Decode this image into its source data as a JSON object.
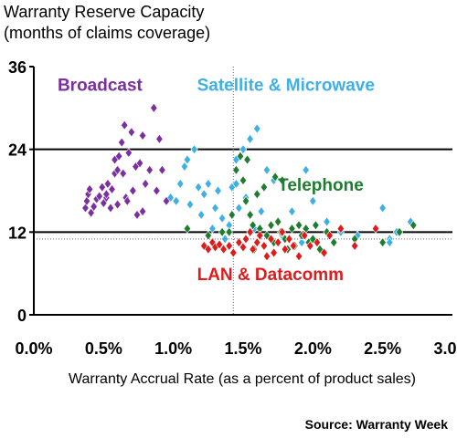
{
  "chart_data": {
    "type": "scatter",
    "title_lines": [
      "Warranty Reserve Capacity",
      "(months of claims coverage)"
    ],
    "xlabel": "Warranty Accrual Rate (as a percent of product sales)",
    "source": "Source: Warranty Week",
    "xlim": [
      0,
      3.0
    ],
    "ylim": [
      0,
      36
    ],
    "x_ticks": [
      0,
      0.5,
      1.0,
      1.5,
      2.0,
      2.5,
      3.0
    ],
    "x_tick_labels": [
      "0.0%",
      "0.5%",
      "1.0%",
      "1.5%",
      "2.0%",
      "2.5%",
      "3.0%"
    ],
    "y_ticks": [
      0,
      12,
      24,
      36
    ],
    "y_tick_labels": [
      "0",
      "12",
      "24",
      "36"
    ],
    "major_gridlines_y": [
      12,
      24
    ],
    "reference_lines": {
      "x": 1.43,
      "y": 11.0
    },
    "marker": "diamond",
    "series": [
      {
        "name": "Broadcast",
        "color": "#7b2fa0",
        "label_pos": [
          0.17,
          32.5
        ],
        "points": [
          [
            0.37,
            15.5
          ],
          [
            0.38,
            16.5
          ],
          [
            0.39,
            17.5
          ],
          [
            0.4,
            18.2
          ],
          [
            0.41,
            14.8
          ],
          [
            0.43,
            15.7
          ],
          [
            0.45,
            16.8
          ],
          [
            0.47,
            17.2
          ],
          [
            0.49,
            18.5
          ],
          [
            0.5,
            16.2
          ],
          [
            0.52,
            17.0
          ],
          [
            0.53,
            19.0
          ],
          [
            0.55,
            15.5
          ],
          [
            0.56,
            18.2
          ],
          [
            0.58,
            20.5
          ],
          [
            0.58,
            22.5
          ],
          [
            0.6,
            21.0
          ],
          [
            0.61,
            23.0
          ],
          [
            0.63,
            25.0
          ],
          [
            0.64,
            20.5
          ],
          [
            0.66,
            17.0
          ],
          [
            0.67,
            16.5
          ],
          [
            0.68,
            23.5
          ],
          [
            0.65,
            27.5
          ],
          [
            0.7,
            26.5
          ],
          [
            0.71,
            18.0
          ],
          [
            0.73,
            21.5
          ],
          [
            0.74,
            14.5
          ],
          [
            0.76,
            22.0
          ],
          [
            0.78,
            26.0
          ],
          [
            0.8,
            19.0
          ],
          [
            0.83,
            21.0
          ],
          [
            0.86,
            30.0
          ],
          [
            0.88,
            18.0
          ],
          [
            0.9,
            25.5
          ],
          [
            0.92,
            21.0
          ],
          [
            0.95,
            16.5
          ],
          [
            0.78,
            15.0
          ],
          [
            0.6,
            16.0
          ],
          [
            0.52,
            17.5
          ]
        ]
      },
      {
        "name": "Satellite & Microwave",
        "color": "#3db0e6",
        "label_pos": [
          1.17,
          32.5
        ],
        "points": [
          [
            0.98,
            17.0
          ],
          [
            1.02,
            16.5
          ],
          [
            1.05,
            19.0
          ],
          [
            1.08,
            21.5
          ],
          [
            1.1,
            22.5
          ],
          [
            1.12,
            16.0
          ],
          [
            1.15,
            24.0
          ],
          [
            1.18,
            18.5
          ],
          [
            1.2,
            14.5
          ],
          [
            1.22,
            17.5
          ],
          [
            1.25,
            19.0
          ],
          [
            1.28,
            12.5
          ],
          [
            1.3,
            15.5
          ],
          [
            1.32,
            18.0
          ],
          [
            1.35,
            14.0
          ],
          [
            1.37,
            11.0
          ],
          [
            1.4,
            13.0
          ],
          [
            1.42,
            18.5
          ],
          [
            1.45,
            22.5
          ],
          [
            1.47,
            15.5
          ],
          [
            1.5,
            24.0
          ],
          [
            1.52,
            17.0
          ],
          [
            1.55,
            25.5
          ],
          [
            1.58,
            12.5
          ],
          [
            1.6,
            27.0
          ],
          [
            1.63,
            15.0
          ],
          [
            1.67,
            21.0
          ],
          [
            1.72,
            19.5
          ],
          [
            1.78,
            11.5
          ],
          [
            1.85,
            15.0
          ],
          [
            1.95,
            21.0
          ],
          [
            2.0,
            16.5
          ],
          [
            2.1,
            13.5
          ],
          [
            2.2,
            12.0
          ],
          [
            2.32,
            11.5
          ],
          [
            2.5,
            15.5
          ],
          [
            2.55,
            11.0
          ],
          [
            2.6,
            12.0
          ],
          [
            2.7,
            13.5
          ],
          [
            2.55,
            10.5
          ],
          [
            1.92,
            10.5
          ],
          [
            1.45,
            19.0
          ]
        ]
      },
      {
        "name": "Telephone",
        "color": "#1e7d2e",
        "label_pos": [
          1.75,
          18.0
        ],
        "points": [
          [
            1.1,
            12.5
          ],
          [
            1.25,
            11.5
          ],
          [
            1.35,
            12.0
          ],
          [
            1.45,
            21.0
          ],
          [
            1.48,
            23.0
          ],
          [
            1.5,
            19.5
          ],
          [
            1.52,
            16.5
          ],
          [
            1.53,
            22.5
          ],
          [
            1.55,
            14.5
          ],
          [
            1.57,
            13.0
          ],
          [
            1.6,
            17.5
          ],
          [
            1.62,
            12.5
          ],
          [
            1.65,
            18.5
          ],
          [
            1.67,
            11.5
          ],
          [
            1.7,
            13.0
          ],
          [
            1.72,
            10.5
          ],
          [
            1.73,
            20.0
          ],
          [
            1.75,
            13.5
          ],
          [
            1.77,
            12.0
          ],
          [
            1.78,
            19.5
          ],
          [
            1.8,
            11.0
          ],
          [
            1.82,
            9.5
          ],
          [
            1.85,
            12.5
          ],
          [
            1.87,
            10.0
          ],
          [
            1.9,
            13.0
          ],
          [
            1.92,
            11.5
          ],
          [
            1.95,
            12.5
          ],
          [
            1.97,
            10.5
          ],
          [
            2.0,
            11.0
          ],
          [
            2.02,
            13.0
          ],
          [
            2.05,
            9.5
          ],
          [
            2.1,
            12.0
          ],
          [
            2.15,
            10.5
          ],
          [
            2.3,
            11.0
          ],
          [
            2.5,
            10.5
          ],
          [
            2.62,
            12.0
          ],
          [
            2.72,
            13.0
          ],
          [
            1.4,
            12.0
          ],
          [
            1.42,
            14.5
          ],
          [
            1.58,
            9.5
          ]
        ]
      },
      {
        "name": "LAN & Datacomm",
        "color": "#e11b1b",
        "label_pos": [
          1.17,
          5.0
        ],
        "points": [
          [
            1.22,
            10.0
          ],
          [
            1.25,
            9.5
          ],
          [
            1.28,
            10.5
          ],
          [
            1.3,
            9.8
          ],
          [
            1.33,
            10.2
          ],
          [
            1.36,
            9.5
          ],
          [
            1.4,
            10.0
          ],
          [
            1.43,
            9.0
          ],
          [
            1.47,
            10.5
          ],
          [
            1.5,
            9.8
          ],
          [
            1.52,
            11.0
          ],
          [
            1.55,
            12.0
          ],
          [
            1.57,
            9.5
          ],
          [
            1.6,
            10.5
          ],
          [
            1.62,
            11.5
          ],
          [
            1.65,
            10.0
          ],
          [
            1.67,
            8.5
          ],
          [
            1.7,
            11.0
          ],
          [
            1.72,
            9.0
          ],
          [
            1.75,
            10.5
          ],
          [
            1.78,
            12.0
          ],
          [
            1.8,
            9.5
          ],
          [
            1.83,
            11.0
          ],
          [
            1.86,
            10.0
          ],
          [
            1.9,
            8.5
          ],
          [
            1.94,
            11.5
          ],
          [
            1.98,
            10.0
          ],
          [
            2.03,
            10.5
          ],
          [
            2.08,
            9.0
          ],
          [
            2.12,
            11.5
          ],
          [
            2.2,
            12.5
          ],
          [
            2.3,
            10.0
          ],
          [
            2.45,
            12.5
          ]
        ]
      }
    ]
  }
}
